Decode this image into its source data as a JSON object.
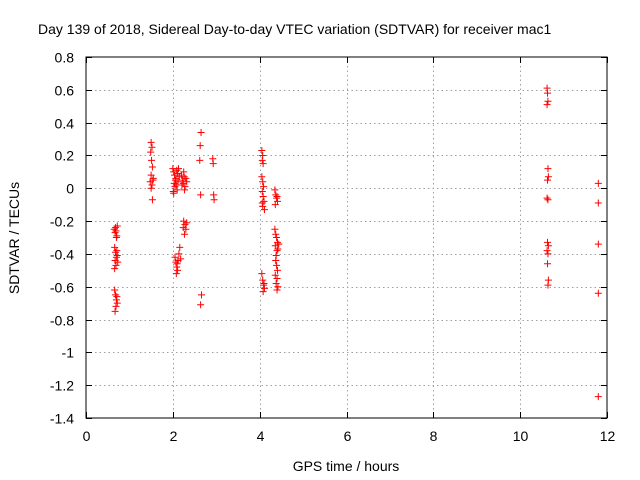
{
  "chart_data": {
    "type": "scatter",
    "title": "Day 139 of 2018, Sidereal Day-to-day VTEC variation (SDTVAR) for receiver mac1",
    "xlabel": "GPS time / hours",
    "ylabel": "SDTVAR / TECUs",
    "xlim": [
      0,
      12
    ],
    "ylim": [
      -1.4,
      0.8
    ],
    "xticks": [
      0,
      2,
      4,
      6,
      8,
      10,
      12
    ],
    "xtick_labels": [
      "0",
      "2",
      "4",
      "6",
      "8",
      "10",
      "12"
    ],
    "yticks": [
      0.8,
      0.6,
      0.4,
      0.2,
      0,
      -0.2,
      -0.4,
      -0.6,
      -0.8,
      -1,
      -1.2,
      -1.4
    ],
    "ytick_labels": [
      "0.8",
      "0.6",
      "0.4",
      "0.2",
      "0",
      "-0.2",
      "-0.4",
      "-0.6",
      "-0.8",
      "-1",
      "-1.2",
      "-1.4"
    ],
    "grid": true,
    "marker": "+",
    "color": "#ff0000",
    "series": [
      {
        "name": "SDTVAR",
        "points": [
          [
            0.65,
            -0.25
          ],
          [
            0.67,
            -0.27
          ],
          [
            0.69,
            -0.26
          ],
          [
            0.71,
            -0.29
          ],
          [
            0.68,
            -0.24
          ],
          [
            0.72,
            -0.23
          ],
          [
            0.7,
            -0.3
          ],
          [
            0.66,
            -0.36
          ],
          [
            0.68,
            -0.39
          ],
          [
            0.7,
            -0.42
          ],
          [
            0.72,
            -0.41
          ],
          [
            0.67,
            -0.44
          ],
          [
            0.69,
            -0.47
          ],
          [
            0.66,
            -0.49
          ],
          [
            0.71,
            -0.38
          ],
          [
            0.73,
            -0.45
          ],
          [
            0.66,
            -0.62
          ],
          [
            0.68,
            -0.65
          ],
          [
            0.7,
            -0.68
          ],
          [
            0.72,
            -0.7
          ],
          [
            0.69,
            -0.72
          ],
          [
            0.67,
            -0.75
          ],
          [
            0.71,
            -0.66
          ],
          [
            1.5,
            0.28
          ],
          [
            1.52,
            0.25
          ],
          [
            1.49,
            0.22
          ],
          [
            1.51,
            0.17
          ],
          [
            1.53,
            0.13
          ],
          [
            1.5,
            0.08
          ],
          [
            1.54,
            0.05
          ],
          [
            1.48,
            0.04
          ],
          [
            1.52,
            0.02
          ],
          [
            1.55,
            0.06
          ],
          [
            1.5,
            0.0
          ],
          [
            1.53,
            -0.07
          ],
          [
            2.0,
            0.12
          ],
          [
            2.02,
            0.1
          ],
          [
            2.04,
            0.08
          ],
          [
            2.06,
            0.05
          ],
          [
            2.03,
            0.03
          ],
          [
            2.05,
            0.01
          ],
          [
            2.01,
            -0.02
          ],
          [
            2.07,
            0.06
          ],
          [
            2.09,
            0.11
          ],
          [
            2.11,
            0.09
          ],
          [
            2.08,
            0.02
          ],
          [
            2.1,
            -0.01
          ],
          [
            2.12,
            0.04
          ],
          [
            2.15,
            0.07
          ],
          [
            2.13,
            0.12
          ],
          [
            2.02,
            -0.03
          ],
          [
            2.05,
            -0.42
          ],
          [
            2.07,
            -0.45
          ],
          [
            2.09,
            -0.48
          ],
          [
            2.11,
            -0.5
          ],
          [
            2.08,
            -0.52
          ],
          [
            2.12,
            -0.44
          ],
          [
            2.14,
            -0.4
          ],
          [
            2.16,
            -0.36
          ],
          [
            2.18,
            -0.43
          ],
          [
            2.1,
            -0.46
          ],
          [
            2.2,
            0.08
          ],
          [
            2.22,
            0.05
          ],
          [
            2.24,
            0.03
          ],
          [
            2.26,
            0.07
          ],
          [
            2.28,
            0.01
          ],
          [
            2.3,
            0.06
          ],
          [
            2.25,
            0.1
          ],
          [
            2.32,
            0.04
          ],
          [
            2.27,
            -0.01
          ],
          [
            2.21,
            0.02
          ],
          [
            2.25,
            -0.2
          ],
          [
            2.28,
            -0.22
          ],
          [
            2.3,
            -0.25
          ],
          [
            2.27,
            -0.28
          ],
          [
            2.32,
            -0.21
          ],
          [
            2.24,
            -0.24
          ],
          [
            2.65,
            0.34
          ],
          [
            2.63,
            0.26
          ],
          [
            2.62,
            0.17
          ],
          [
            2.64,
            -0.04
          ],
          [
            2.66,
            -0.65
          ],
          [
            2.64,
            -0.71
          ],
          [
            2.92,
            0.18
          ],
          [
            2.93,
            0.15
          ],
          [
            2.94,
            -0.04
          ],
          [
            2.95,
            -0.07
          ],
          [
            4.05,
            0.23
          ],
          [
            4.07,
            0.2
          ],
          [
            4.06,
            0.17
          ],
          [
            4.08,
            0.15
          ],
          [
            4.05,
            0.07
          ],
          [
            4.07,
            0.04
          ],
          [
            4.09,
            0.01
          ],
          [
            4.06,
            -0.02
          ],
          [
            4.08,
            -0.05
          ],
          [
            4.1,
            -0.08
          ],
          [
            4.07,
            -0.11
          ],
          [
            4.11,
            -0.13
          ],
          [
            4.06,
            -0.09
          ],
          [
            4.05,
            -0.52
          ],
          [
            4.07,
            -0.56
          ],
          [
            4.09,
            -0.59
          ],
          [
            4.11,
            -0.61
          ],
          [
            4.08,
            -0.63
          ],
          [
            4.1,
            -0.58
          ],
          [
            4.35,
            -0.01
          ],
          [
            4.37,
            -0.04
          ],
          [
            4.39,
            -0.06
          ],
          [
            4.41,
            -0.08
          ],
          [
            4.36,
            -0.1
          ],
          [
            4.4,
            -0.05
          ],
          [
            4.35,
            -0.25
          ],
          [
            4.37,
            -0.28
          ],
          [
            4.39,
            -0.3
          ],
          [
            4.41,
            -0.33
          ],
          [
            4.36,
            -0.35
          ],
          [
            4.4,
            -0.38
          ],
          [
            4.38,
            -0.41
          ],
          [
            4.42,
            -0.37
          ],
          [
            4.44,
            -0.34
          ],
          [
            4.37,
            -0.44
          ],
          [
            4.39,
            -0.47
          ],
          [
            4.41,
            -0.5
          ],
          [
            4.36,
            -0.53
          ],
          [
            4.4,
            -0.55
          ],
          [
            4.38,
            -0.58
          ],
          [
            4.42,
            -0.6
          ],
          [
            4.4,
            -0.62
          ],
          [
            10.62,
            0.61
          ],
          [
            10.63,
            0.58
          ],
          [
            10.64,
            0.53
          ],
          [
            10.62,
            0.51
          ],
          [
            10.64,
            0.12
          ],
          [
            10.65,
            0.07
          ],
          [
            10.63,
            0.05
          ],
          [
            10.62,
            -0.06
          ],
          [
            10.64,
            -0.07
          ],
          [
            10.63,
            -0.33
          ],
          [
            10.65,
            -0.35
          ],
          [
            10.62,
            -0.38
          ],
          [
            10.64,
            -0.4
          ],
          [
            10.63,
            -0.46
          ],
          [
            10.65,
            -0.56
          ],
          [
            10.64,
            -0.59
          ],
          [
            11.8,
            0.03
          ],
          [
            11.8,
            -0.09
          ],
          [
            11.8,
            -0.34
          ],
          [
            11.8,
            -0.64
          ],
          [
            11.8,
            -1.27
          ]
        ]
      }
    ]
  }
}
